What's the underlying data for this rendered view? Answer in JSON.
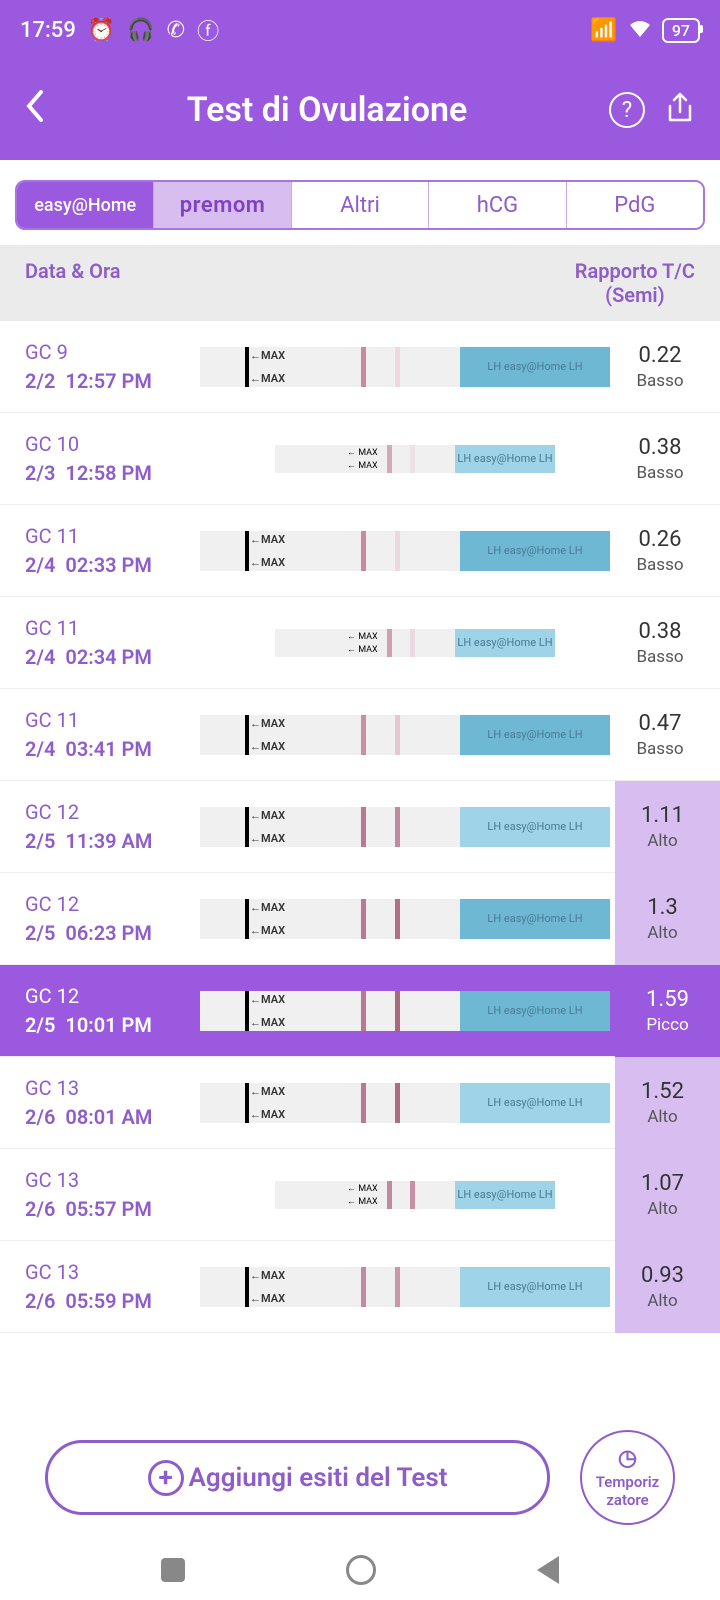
{
  "status": {
    "time": "17:59",
    "battery": "97"
  },
  "header": {
    "title": "Test di Ovulazione"
  },
  "tabs": [
    "easy@Home",
    "premom",
    "Altri",
    "hCG",
    "PdG"
  ],
  "table_header": {
    "left": "Data & Ora",
    "right_line1": "Rapporto T/C",
    "right_line2": "(Semi)"
  },
  "rows": [
    {
      "cycle": "GC 9",
      "date": "2/2",
      "time": "12:57 PM",
      "ratio": "0.22",
      "level": "Basso",
      "strip": "normal",
      "c_color": "#c98aa0",
      "t_color": "#f0d8e0",
      "blue": "dark",
      "level_style": "basso"
    },
    {
      "cycle": "GC 10",
      "date": "2/3",
      "time": "12:58 PM",
      "ratio": "0.38",
      "level": "Basso",
      "strip": "small",
      "c_color": "#d4a8b8",
      "t_color": "#efe0e5",
      "blue": "light",
      "level_style": "basso"
    },
    {
      "cycle": "GC 11",
      "date": "2/4",
      "time": "02:33 PM",
      "ratio": "0.26",
      "level": "Basso",
      "strip": "normal",
      "c_color": "#c88aa0",
      "t_color": "#eed8e0",
      "blue": "dark",
      "level_style": "basso"
    },
    {
      "cycle": "GC 11",
      "date": "2/4",
      "time": "02:34 PM",
      "ratio": "0.38",
      "level": "Basso",
      "strip": "small",
      "c_color": "#d0a0b0",
      "t_color": "#ecd8e0",
      "blue": "light",
      "level_style": "basso"
    },
    {
      "cycle": "GC 11",
      "date": "2/4",
      "time": "03:41 PM",
      "ratio": "0.47",
      "level": "Basso",
      "strip": "normal",
      "c_color": "#c890a5",
      "t_color": "#e5c8d2",
      "blue": "dark",
      "level_style": "basso"
    },
    {
      "cycle": "GC 12",
      "date": "2/5",
      "time": "11:39 AM",
      "ratio": "1.11",
      "level": "Alto",
      "strip": "normal",
      "c_color": "#b87a92",
      "t_color": "#c08aa0",
      "blue": "light",
      "level_style": "alto"
    },
    {
      "cycle": "GC 12",
      "date": "2/5",
      "time": "06:23 PM",
      "ratio": "1.3",
      "level": "Alto",
      "strip": "normal",
      "c_color": "#b87a92",
      "t_color": "#b07088",
      "blue": "dark",
      "level_style": "alto"
    },
    {
      "cycle": "GC 12",
      "date": "2/5",
      "time": "10:01 PM",
      "ratio": "1.59",
      "level": "Picco",
      "strip": "normal",
      "c_color": "#b87a92",
      "t_color": "#a86880",
      "blue": "dark",
      "level_style": "picco",
      "selected": true
    },
    {
      "cycle": "GC 13",
      "date": "2/6",
      "time": "08:01 AM",
      "ratio": "1.52",
      "level": "Alto",
      "strip": "normal",
      "c_color": "#b87a92",
      "t_color": "#ac6c84",
      "blue": "light",
      "level_style": "alto"
    },
    {
      "cycle": "GC 13",
      "date": "2/6",
      "time": "05:57 PM",
      "ratio": "1.07",
      "level": "Alto",
      "strip": "small",
      "c_color": "#c08aa0",
      "t_color": "#c890a5",
      "blue": "light",
      "level_style": "alto"
    },
    {
      "cycle": "GC 13",
      "date": "2/6",
      "time": "05:59 PM",
      "ratio": "0.93",
      "level": "Alto",
      "strip": "normal",
      "c_color": "#c08aa0",
      "t_color": "#c898aa",
      "blue": "light",
      "level_style": "alto"
    }
  ],
  "buttons": {
    "add": "Aggiungi esiti del Test",
    "timer_line1": "Temporiz",
    "timer_line2": "zatore"
  }
}
